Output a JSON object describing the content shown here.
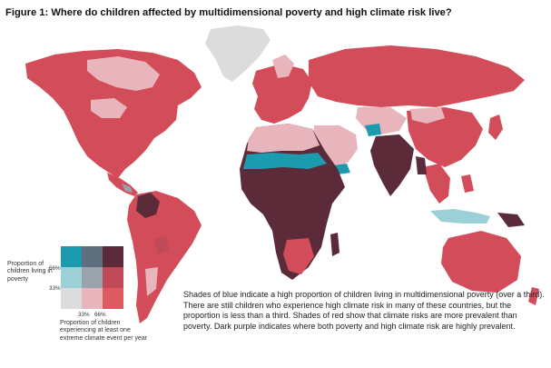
{
  "title": "Figure 1: Where do children affected by multidimensional poverty and high climate risk live?",
  "legend": {
    "y_label": "Proportion of children living in poverty",
    "x_label": "Proportion of children experiencing at least one extreme climate event per year",
    "y_ticks": [
      "66%",
      "33%"
    ],
    "x_ticks": [
      "33%",
      "66%"
    ],
    "cells": [
      [
        "#1c9aae",
        "#5f6f7e",
        "#5b2b3a"
      ],
      [
        "#9bd0d6",
        "#9aa3ab",
        "#c14a58"
      ],
      [
        "#dcdcdc",
        "#e9b5bc",
        "#de5a63"
      ]
    ]
  },
  "caption": "Shades of blue indicate a high proportion of children living in multidimensional poverty (over a third). There are still children who experience high climate risk in many of these countries, but the proportion is less than a third. Shades of red show that climate risks are more prevalent than poverty. Dark purple indicates where both poverty and high climate risk are highly prevalent.",
  "colors": {
    "red": "#d24c59",
    "light_red": "#e9b5bc",
    "dark_purple": "#5b2b3a",
    "blue": "#1c9aae",
    "light_blue": "#9bd0d6",
    "grey": "#dcdcdc",
    "ocean": "#ffffff"
  }
}
